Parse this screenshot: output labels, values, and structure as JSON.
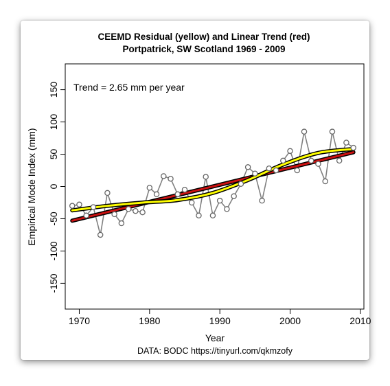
{
  "chart_data": {
    "type": "line",
    "title_line1": "CEEMD Residual (yellow) and Linear Trend (red)",
    "title_line2": "Portpatrick, SW Scotland 1969 - 2009",
    "xlabel": "Year",
    "ylabel": "Empirical Mode Index (mm)",
    "annotation": "Trend = 2.65 mm per year",
    "source": "DATA: BODC https://tinyurl.com/qkmzofy",
    "xlim": [
      1968,
      2010.5
    ],
    "ylim": [
      -190,
      190
    ],
    "x_ticks": [
      1970,
      1980,
      1990,
      2000,
      2010
    ],
    "y_ticks": [
      -150,
      -100,
      -50,
      0,
      50,
      100,
      150
    ],
    "grid": false,
    "series": [
      {
        "style": "gray line with open circle markers",
        "color": "#808080",
        "x": [
          1969,
          1970,
          1971,
          1972,
          1973,
          1974,
          1975,
          1976,
          1977,
          1978,
          1979,
          1980,
          1981,
          1982,
          1983,
          1984,
          1985,
          1986,
          1987,
          1988,
          1989,
          1990,
          1991,
          1992,
          1993,
          1994,
          1995,
          1996,
          1997,
          1998,
          1999,
          2000,
          2001,
          2002,
          2003,
          2004,
          2005,
          2006,
          2007,
          2008,
          2009
        ],
        "values": [
          -30,
          -28,
          -45,
          -32,
          -75,
          -10,
          -43,
          -57,
          -35,
          -38,
          -40,
          -2,
          -12,
          16,
          12,
          -12,
          -5,
          -25,
          -45,
          15,
          -45,
          -22,
          -35,
          -15,
          4,
          30,
          20,
          -22,
          28,
          25,
          40,
          55,
          25,
          85,
          40,
          35,
          8,
          85,
          40,
          68,
          60
        ]
      },
      {
        "style": "red linear trend over black outline",
        "color": "#cc1111",
        "x": [
          1969,
          2009
        ],
        "values": [
          -53,
          53
        ]
      },
      {
        "style": "yellow CEEMD residual over black outline",
        "color": "#ffff00",
        "x": [
          1969,
          1974,
          1979,
          1984,
          1989,
          1994,
          1999,
          2004,
          2009
        ],
        "values": [
          -37,
          -30,
          -25,
          -21,
          -10,
          10,
          34,
          52,
          58
        ]
      }
    ]
  }
}
